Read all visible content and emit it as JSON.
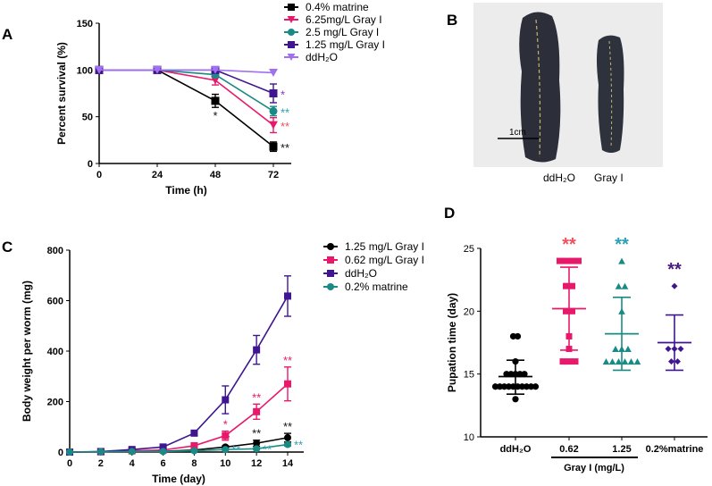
{
  "panel_labels": [
    "A",
    "B",
    "C",
    "D"
  ],
  "chart_data": [
    {
      "id": "A",
      "type": "line",
      "xlabel": "Time (h)",
      "ylabel": "Percent survival (%)",
      "xlim": [
        0,
        72
      ],
      "ylim": [
        0,
        150
      ],
      "xticks": [
        0,
        24,
        48,
        72
      ],
      "yticks": [
        0,
        50,
        100,
        150
      ],
      "x": [
        0,
        24,
        48,
        72
      ],
      "legend_position": "top-right",
      "series": [
        {
          "name": "0.4% matrine",
          "color": "#000000",
          "marker": "square",
          "values": [
            100,
            100,
            67,
            18
          ],
          "errors": [
            0,
            0,
            7,
            5
          ],
          "stars": [
            "",
            "",
            "*",
            "**"
          ],
          "star_color": "#111111"
        },
        {
          "name": "6.25mg/L Gray I",
          "color": "#e8196b",
          "marker": "triangle-down",
          "values": [
            100,
            100,
            89,
            41
          ],
          "errors": [
            0,
            0,
            5,
            8
          ],
          "stars": [
            "",
            "",
            "",
            "**"
          ],
          "star_color": "#f0505a"
        },
        {
          "name": "2.5 mg/L Gray I",
          "color": "#1a8a84",
          "marker": "circle",
          "values": [
            100,
            100,
            95,
            56
          ],
          "errors": [
            0,
            0,
            2,
            5
          ],
          "stars": [
            "",
            "",
            "",
            "**"
          ],
          "star_color": "#2aa0b8"
        },
        {
          "name": "1.25 mg/L Gray I",
          "color": "#3f1591",
          "marker": "square",
          "values": [
            100,
            100,
            100,
            75
          ],
          "errors": [
            0,
            0,
            0,
            10
          ],
          "stars": [
            "",
            "",
            "",
            "*"
          ],
          "star_color": "#9b30c0"
        },
        {
          "name": "ddH₂O",
          "color": "#a070f0",
          "marker": "triangle-down",
          "values": [
            100,
            100,
            100,
            97
          ],
          "errors": [
            0,
            0,
            0,
            0
          ],
          "stars": [
            "",
            "",
            "",
            ""
          ],
          "star_color": "#a070f0"
        }
      ]
    },
    {
      "id": "C",
      "type": "line",
      "xlabel": "Time (day)",
      "ylabel": "Body weight per worm (mg)",
      "xlim": [
        0,
        14
      ],
      "ylim": [
        0,
        800
      ],
      "xticks": [
        0,
        2,
        4,
        6,
        8,
        10,
        12,
        14
      ],
      "yticks": [
        0,
        200,
        400,
        600,
        800
      ],
      "x": [
        0,
        2,
        4,
        6,
        8,
        10,
        12,
        14
      ],
      "legend_position": "top-right",
      "series": [
        {
          "name": "1.25 mg/L Gray I",
          "color": "#000000",
          "marker": "circle",
          "values": [
            0,
            1,
            3,
            3,
            8,
            20,
            35,
            57
          ],
          "errors": [
            0,
            0,
            0,
            0,
            2,
            5,
            12,
            17
          ],
          "stars": [
            "",
            "",
            "",
            "",
            "",
            "**",
            "**",
            "**"
          ],
          "star_color": "#111111"
        },
        {
          "name": "0.62 mg/L Gray I",
          "color": "#e8196b",
          "marker": "square",
          "values": [
            0,
            1,
            5,
            8,
            25,
            65,
            160,
            270
          ],
          "errors": [
            0,
            0,
            0,
            0,
            4,
            18,
            30,
            67
          ],
          "stars": [
            "",
            "",
            "",
            "",
            "",
            "*",
            "**",
            "**"
          ],
          "star_color": "#e8196b"
        },
        {
          "name": "ddH₂O",
          "color": "#3f1591",
          "marker": "square",
          "values": [
            0,
            2,
            10,
            20,
            75,
            207,
            405,
            618
          ],
          "errors": [
            0,
            0,
            2,
            4,
            10,
            55,
            57,
            80
          ],
          "stars": [
            "",
            "",
            "",
            "",
            "",
            "",
            "",
            ""
          ],
          "star_color": "#3f1591"
        },
        {
          "name": "0.2% matrine",
          "color": "#1a8a84",
          "marker": "circle",
          "values": [
            0,
            1,
            2,
            2,
            5,
            10,
            13,
            30
          ],
          "errors": [
            0,
            0,
            0,
            0,
            1,
            3,
            4,
            6
          ],
          "stars": [
            "",
            "",
            "",
            "",
            "",
            "**",
            "**",
            "**"
          ],
          "star_color": "#2aa0b8",
          "stars_right": true
        }
      ]
    },
    {
      "id": "D",
      "type": "scatter",
      "ylabel": "Pupation time (day)",
      "ylim": [
        10,
        25
      ],
      "yticks": [
        10,
        15,
        20,
        25
      ],
      "categories": [
        "ddH₂O",
        "0.62",
        "1.25",
        "0.2%matrine"
      ],
      "group_label": "Gray I (mg/L)",
      "groups": [
        {
          "name": "ddH₂O",
          "color": "#000000",
          "marker": "circle",
          "points": [
            13,
            14,
            14,
            14,
            14,
            14,
            14,
            14,
            14,
            14,
            14,
            15,
            15,
            15,
            15,
            15,
            16,
            18,
            18
          ],
          "mean": 14.8,
          "sd": [
            13.4,
            16.1
          ],
          "stars": ""
        },
        {
          "name": "0.62",
          "color": "#e8196b",
          "marker": "square",
          "points": [
            24,
            24,
            24,
            24,
            22,
            22,
            20,
            20,
            18,
            17,
            16,
            16,
            16
          ],
          "mean": 20.2,
          "sd": [
            16.9,
            23.5
          ],
          "stars": "**",
          "star_color": "#f0505a"
        },
        {
          "name": "1.25",
          "color": "#1a8a84",
          "marker": "triangle",
          "points": [
            24,
            22,
            22,
            20,
            17,
            17,
            17,
            16,
            16,
            16,
            16,
            16,
            16
          ],
          "mean": 18.2,
          "sd": [
            15.3,
            21.1
          ],
          "stars": "**",
          "star_color": "#2aa0b8"
        },
        {
          "name": "0.2%matrine",
          "color": "#3f1591",
          "marker": "diamond",
          "points": [
            22,
            17,
            17,
            17,
            16,
            16
          ],
          "mean": 17.5,
          "sd": [
            15.3,
            19.7
          ],
          "stars": "**",
          "star_color": "#4a1a80"
        }
      ]
    }
  ],
  "photo": {
    "scale_label": "1cm",
    "labels": [
      "ddH₂O",
      "Gray I"
    ]
  }
}
